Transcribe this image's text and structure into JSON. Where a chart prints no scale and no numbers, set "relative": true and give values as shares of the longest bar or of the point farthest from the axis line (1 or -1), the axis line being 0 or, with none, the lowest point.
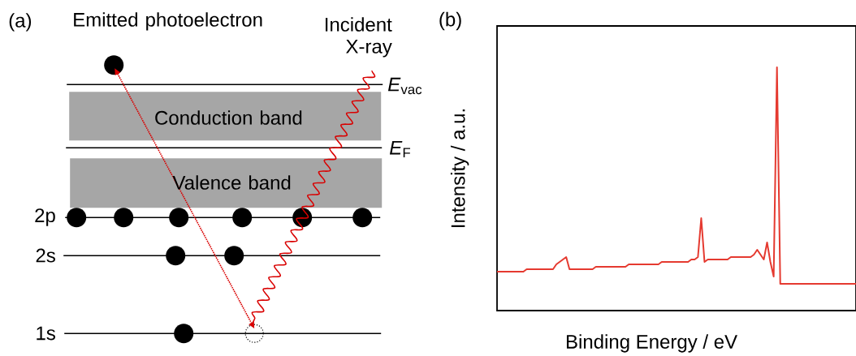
{
  "chart_data": [
    {
      "type": "other",
      "title": "(a)",
      "annotations": [
        "Emitted photoelectron",
        "Incident X-ray",
        "*E*$_{vac}$",
        "*E*$_{F}$",
        "Conduction band",
        "Valence band",
        "2p",
        "2s",
        "1s"
      ]
    },
    {
      "type": "line",
      "title": "(b)",
      "xlabel": "Binding Energy / eV",
      "ylabel": "Intensity / a.u.",
      "relative": true,
      "color": "#e53a30",
      "categories": [
        null,
        null,
        null,
        null,
        null,
        null,
        null,
        null,
        null,
        null,
        null,
        null,
        null,
        null,
        null,
        null,
        null,
        null,
        null,
        null,
        null,
        null,
        null,
        null,
        null,
        null,
        null,
        null,
        null,
        null,
        null,
        null,
        null,
        null,
        null,
        null,
        null,
        null,
        null,
        null,
        null,
        null,
        null,
        null,
        null,
        null,
        null,
        null,
        null,
        null,
        null,
        null,
        null,
        null,
        null,
        null,
        null,
        null,
        null,
        null,
        null,
        null,
        null,
        null,
        null,
        null,
        null,
        null,
        null,
        null,
        null,
        null,
        null,
        null,
        null,
        null,
        null,
        null,
        null,
        null,
        null,
        null,
        null,
        null,
        null,
        null,
        null,
        null,
        null,
        null,
        null,
        null,
        null,
        null,
        null,
        null,
        null,
        null,
        null,
        null,
        null,
        null,
        null,
        null,
        null,
        null,
        null,
        null,
        null,
        null
      ],
      "values": [
        0.16,
        0.16,
        0.16,
        0.16,
        0.16,
        0.16,
        0.16,
        0.16,
        0.16,
        0.17,
        0.17,
        0.17,
        0.17,
        0.17,
        0.17,
        0.17,
        0.17,
        0.17,
        0.19,
        0.2,
        0.21,
        0.22,
        0.17,
        0.17,
        0.17,
        0.17,
        0.17,
        0.17,
        0.17,
        0.17,
        0.18,
        0.18,
        0.18,
        0.18,
        0.18,
        0.18,
        0.18,
        0.18,
        0.18,
        0.18,
        0.19,
        0.19,
        0.19,
        0.19,
        0.19,
        0.19,
        0.19,
        0.19,
        0.19,
        0.19,
        0.2,
        0.2,
        0.2,
        0.2,
        0.2,
        0.2,
        0.2,
        0.2,
        0.2,
        0.21,
        0.21,
        0.22,
        0.38,
        0.2,
        0.21,
        0.21,
        0.21,
        0.21,
        0.21,
        0.21,
        0.21,
        0.22,
        0.22,
        0.22,
        0.22,
        0.22,
        0.22,
        0.22,
        0.23,
        0.25,
        0.23,
        0.21,
        0.28,
        0.2,
        0.14,
        1,
        0.11,
        0.11,
        0.11,
        0.11,
        0.11,
        0.11,
        0.11,
        0.11,
        0.11,
        0.11,
        0.11,
        0.11,
        0.11,
        0.11,
        0.11,
        0.11,
        0.11,
        0.11,
        0.11,
        0.11,
        0.11,
        0.11,
        0.11,
        0.11
      ]
    }
  ]
}
